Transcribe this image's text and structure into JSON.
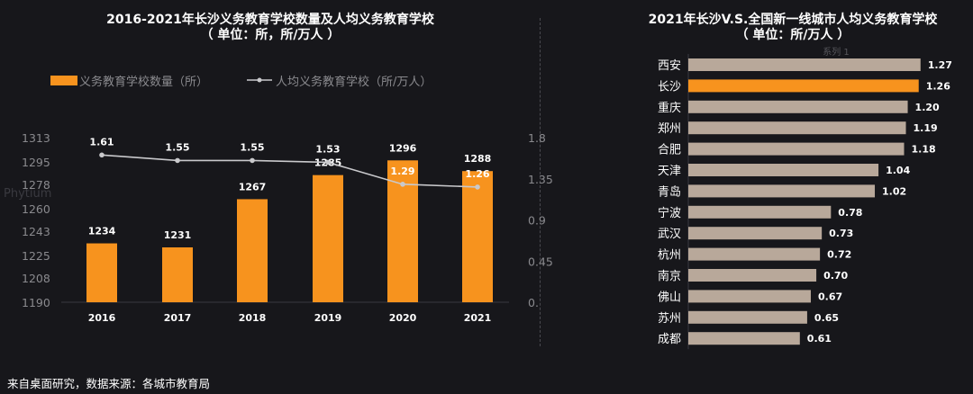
{
  "left_title": {
    "line1": "2016-2021年长沙义务教育学校数量及人均义务教育学校",
    "line2": "（ 单位：所，所/万人 ）"
  },
  "right_title": {
    "line1": "2021年长沙V.S.全国新一线城市人均义务教育学校",
    "line2": "（ 单位：所/万人 ）"
  },
  "source_note": "来自桌面研究，数据来源：各城市教育局",
  "watermark": "Phytium",
  "colors": {
    "bar_orange": "#f7931e",
    "bar_tan": "#b8a89a",
    "line_gray": "#c9c9cc",
    "axis_text": "#8a8a8e"
  },
  "chart_data": [
    {
      "type": "bar+line",
      "title": "2016-2021年长沙义务教育学校数量及人均义务教育学校",
      "categories": [
        "2016",
        "2017",
        "2018",
        "2019",
        "2020",
        "2021"
      ],
      "series": [
        {
          "name": "义务教育学校数量（所）",
          "type": "bar",
          "axis": "left",
          "values": [
            1234,
            1231,
            1267,
            1285,
            1296,
            1288
          ],
          "labels": [
            "1234",
            "1231",
            "1267",
            "1285",
            "1296",
            "1288"
          ]
        },
        {
          "name": "人均义务教育学校（所/万人）",
          "type": "line",
          "axis": "right",
          "values": [
            1.61,
            1.55,
            1.55,
            1.53,
            1.29,
            1.26
          ],
          "labels": [
            "1.61",
            "1.55",
            "1.55",
            "1.53",
            "1.29",
            "1.26"
          ]
        }
      ],
      "left_axis": {
        "ylim": [
          1190,
          1313
        ],
        "ticks": [
          1190,
          1208,
          1225,
          1243,
          1260,
          1278,
          1295,
          1313
        ],
        "tick_labels": [
          "1190",
          "1208",
          "1225",
          "1243",
          "1260",
          "1278",
          "1295",
          "1313"
        ]
      },
      "right_axis": {
        "ylim": [
          0,
          1.8
        ],
        "ticks": [
          0,
          0.45,
          0.9,
          1.35,
          1.8
        ],
        "tick_labels": [
          "0.",
          "0.45",
          "0.9",
          "1.35",
          "1.8"
        ]
      },
      "legend": "top-left"
    },
    {
      "type": "bar",
      "orientation": "horizontal",
      "title": "2021年长沙V.S.全国新一线城市人均义务教育学校",
      "series_label": "系列 1",
      "highlight": "长沙",
      "categories": [
        "西安",
        "长沙",
        "重庆",
        "郑州",
        "合肥",
        "天津",
        "青岛",
        "宁波",
        "武汉",
        "杭州",
        "南京",
        "佛山",
        "苏州",
        "成都"
      ],
      "values": [
        1.27,
        1.26,
        1.2,
        1.19,
        1.18,
        1.04,
        1.02,
        0.78,
        0.73,
        0.72,
        0.7,
        0.67,
        0.65,
        0.61
      ],
      "labels": [
        "1.27",
        "1.26",
        "1.20",
        "1.19",
        "1.18",
        "1.04",
        "1.02",
        "0.78",
        "0.73",
        "0.72",
        "0.70",
        "0.67",
        "0.65",
        "0.61"
      ],
      "xlim": [
        0,
        1.35
      ]
    }
  ]
}
